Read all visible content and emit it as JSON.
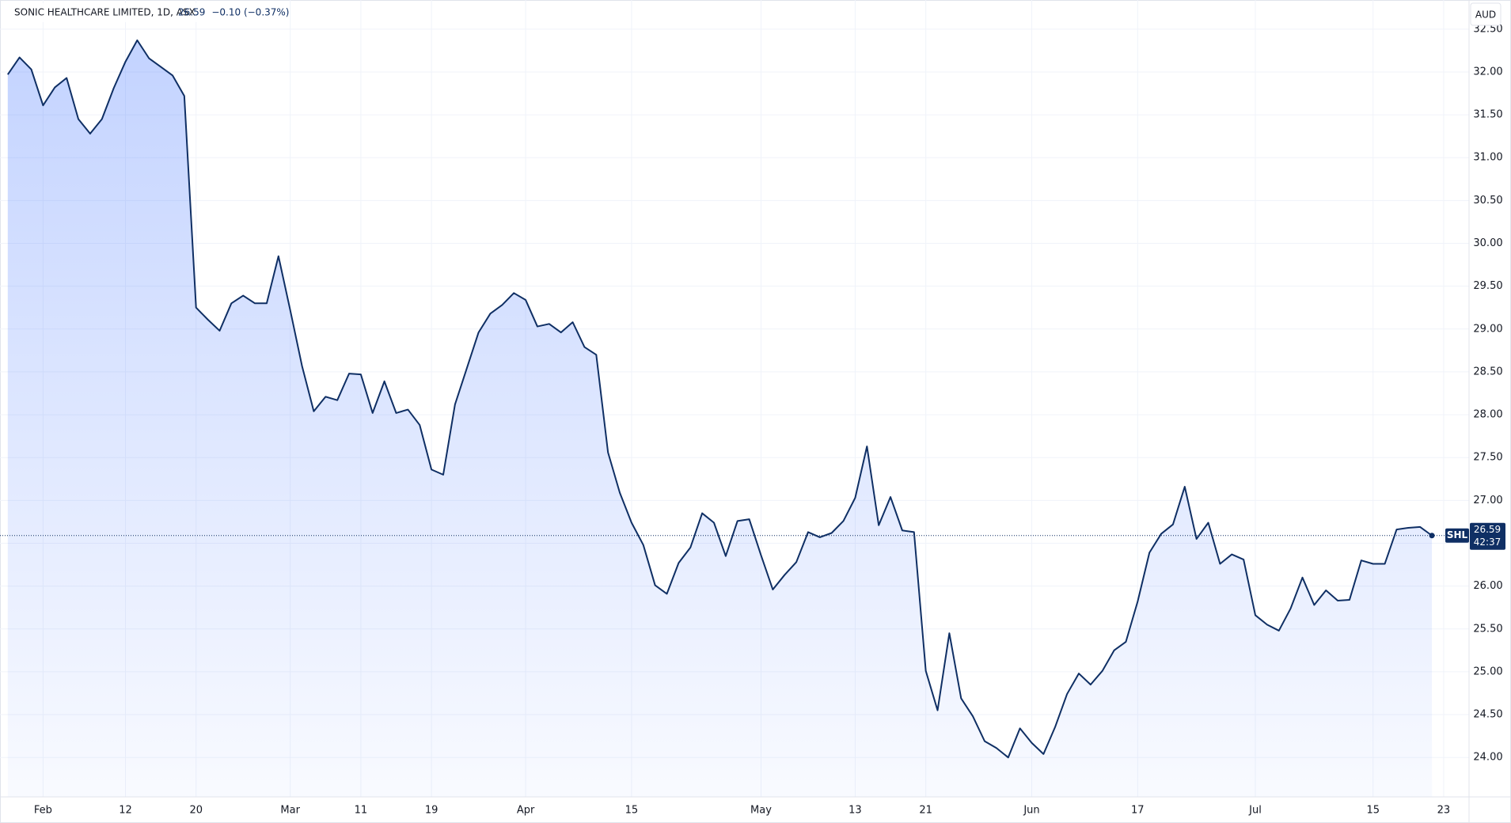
{
  "chart_data": {
    "type": "area",
    "title": "SONIC HEALTHCARE LIMITED, 1D, ASX",
    "change": "−0.10 (−0.37%)",
    "currency": "AUD",
    "symbol": "SHL",
    "countdown": "42:37",
    "color": "#0f2f64",
    "grid": true,
    "categories": [
      null,
      null,
      null,
      "Feb",
      null,
      null,
      null,
      null,
      null,
      null,
      "12",
      null,
      null,
      null,
      null,
      null,
      "20",
      null,
      null,
      null,
      null,
      null,
      null,
      null,
      "Mar",
      null,
      null,
      null,
      null,
      null,
      "11",
      null,
      null,
      null,
      null,
      null,
      "19",
      null,
      null,
      null,
      null,
      null,
      null,
      null,
      "Apr",
      null,
      null,
      null,
      null,
      null,
      null,
      null,
      null,
      "15",
      null,
      null,
      null,
      null,
      null,
      null,
      null,
      null,
      null,
      null,
      "May",
      null,
      null,
      null,
      null,
      null,
      null,
      null,
      "13",
      null,
      null,
      null,
      null,
      null,
      "21",
      null,
      null,
      null,
      null,
      null,
      null,
      null,
      null,
      "Jun",
      null,
      null,
      null,
      null,
      null,
      null,
      null,
      null,
      "17",
      null,
      null,
      null,
      null,
      null,
      null,
      null,
      null,
      null,
      "Jul",
      null,
      null,
      null,
      null,
      null,
      null,
      null,
      null,
      null,
      "15",
      null,
      null,
      null,
      null,
      null,
      "23"
    ],
    "values": [
      31.97,
      32.17,
      32.03,
      31.61,
      31.82,
      31.93,
      31.45,
      31.28,
      31.45,
      31.81,
      32.12,
      32.37,
      32.16,
      32.06,
      31.96,
      31.72,
      29.25,
      29.11,
      28.98,
      29.3,
      29.39,
      29.3,
      29.3,
      29.85,
      29.22,
      28.57,
      28.04,
      28.21,
      28.17,
      28.48,
      28.47,
      28.02,
      28.39,
      28.02,
      28.06,
      27.88,
      27.36,
      27.3,
      28.12,
      28.54,
      28.96,
      29.18,
      29.28,
      29.42,
      29.34,
      29.03,
      29.06,
      28.96,
      29.08,
      28.79,
      28.7,
      27.56,
      27.09,
      26.74,
      26.48,
      26.01,
      25.91,
      26.27,
      26.45,
      26.85,
      26.74,
      26.35,
      26.76,
      26.78,
      26.36,
      25.96,
      26.13,
      26.28,
      26.63,
      26.57,
      26.62,
      26.76,
      27.03,
      27.63,
      26.71,
      27.04,
      26.65,
      26.63,
      25.01,
      24.55,
      25.45,
      24.69,
      24.48,
      24.19,
      24.11,
      24.0,
      24.34,
      24.17,
      24.04,
      24.36,
      24.74,
      24.98,
      24.85,
      25.01,
      25.25,
      25.35,
      25.82,
      26.39,
      26.61,
      26.72,
      27.16,
      26.55,
      26.74,
      26.26,
      26.37,
      26.31,
      25.66,
      25.55,
      25.48,
      25.74,
      26.1,
      25.78,
      25.95,
      25.83,
      25.84,
      26.3,
      26.26,
      26.26,
      26.66,
      26.68,
      26.69,
      26.59,
      null
    ],
    "ylim": [
      23.54,
      32.84
    ],
    "yticks": [
      {
        "value": 24,
        "label": "24.00"
      },
      {
        "value": 24.5,
        "label": "24.50"
      },
      {
        "value": 25,
        "label": "25.00"
      },
      {
        "value": 25.5,
        "label": "25.50"
      },
      {
        "value": 26,
        "label": "26.00"
      },
      {
        "value": 26.5,
        "label": "26.50"
      },
      {
        "value": 27,
        "label": "27.00"
      },
      {
        "value": 27.5,
        "label": "27.50"
      },
      {
        "value": 28,
        "label": "28.00"
      },
      {
        "value": 28.5,
        "label": "28.50"
      },
      {
        "value": 29,
        "label": "29.00"
      },
      {
        "value": 29.5,
        "label": "29.50"
      },
      {
        "value": 30,
        "label": "30.00"
      },
      {
        "value": 30.5,
        "label": "30.50"
      },
      {
        "value": 31,
        "label": "31.00"
      },
      {
        "value": 31.5,
        "label": "31.50"
      },
      {
        "value": 32,
        "label": "32.00"
      },
      {
        "value": 32.5,
        "label": "32.50"
      }
    ]
  }
}
